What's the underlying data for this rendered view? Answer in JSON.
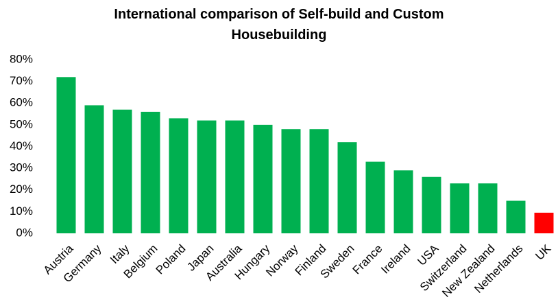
{
  "chart_data": {
    "type": "bar",
    "title": "International comparison of Self-build and Custom Housebuilding",
    "categories": [
      "Austria",
      "Germany",
      "Italy",
      "Belgium",
      "Poland",
      "Japan",
      "Australia",
      "Hungary",
      "Norway",
      "Finland",
      "Sweden",
      "France",
      "Ireland",
      "USA",
      "Switzerland",
      "New Zealand",
      "Netherlands",
      "UK"
    ],
    "values": [
      72,
      59,
      57,
      56,
      53,
      52,
      52,
      50,
      48,
      48,
      42,
      33,
      29,
      26,
      23,
      23,
      15,
      9.5
    ],
    "colors": [
      "#00b050",
      "#00b050",
      "#00b050",
      "#00b050",
      "#00b050",
      "#00b050",
      "#00b050",
      "#00b050",
      "#00b050",
      "#00b050",
      "#00b050",
      "#00b050",
      "#00b050",
      "#00b050",
      "#00b050",
      "#00b050",
      "#00b050",
      "#ff0000"
    ],
    "ylim": [
      0,
      80
    ],
    "yticks": [
      {
        "value": 0,
        "label": "0%"
      },
      {
        "value": 10,
        "label": "10%"
      },
      {
        "value": 20,
        "label": "20%"
      },
      {
        "value": 30,
        "label": "30%"
      },
      {
        "value": 40,
        "label": "40%"
      },
      {
        "value": 50,
        "label": "50%"
      },
      {
        "value": 60,
        "label": "60%"
      },
      {
        "value": 70,
        "label": "70%"
      },
      {
        "value": 80,
        "label": "80%"
      }
    ],
    "grid": false
  }
}
